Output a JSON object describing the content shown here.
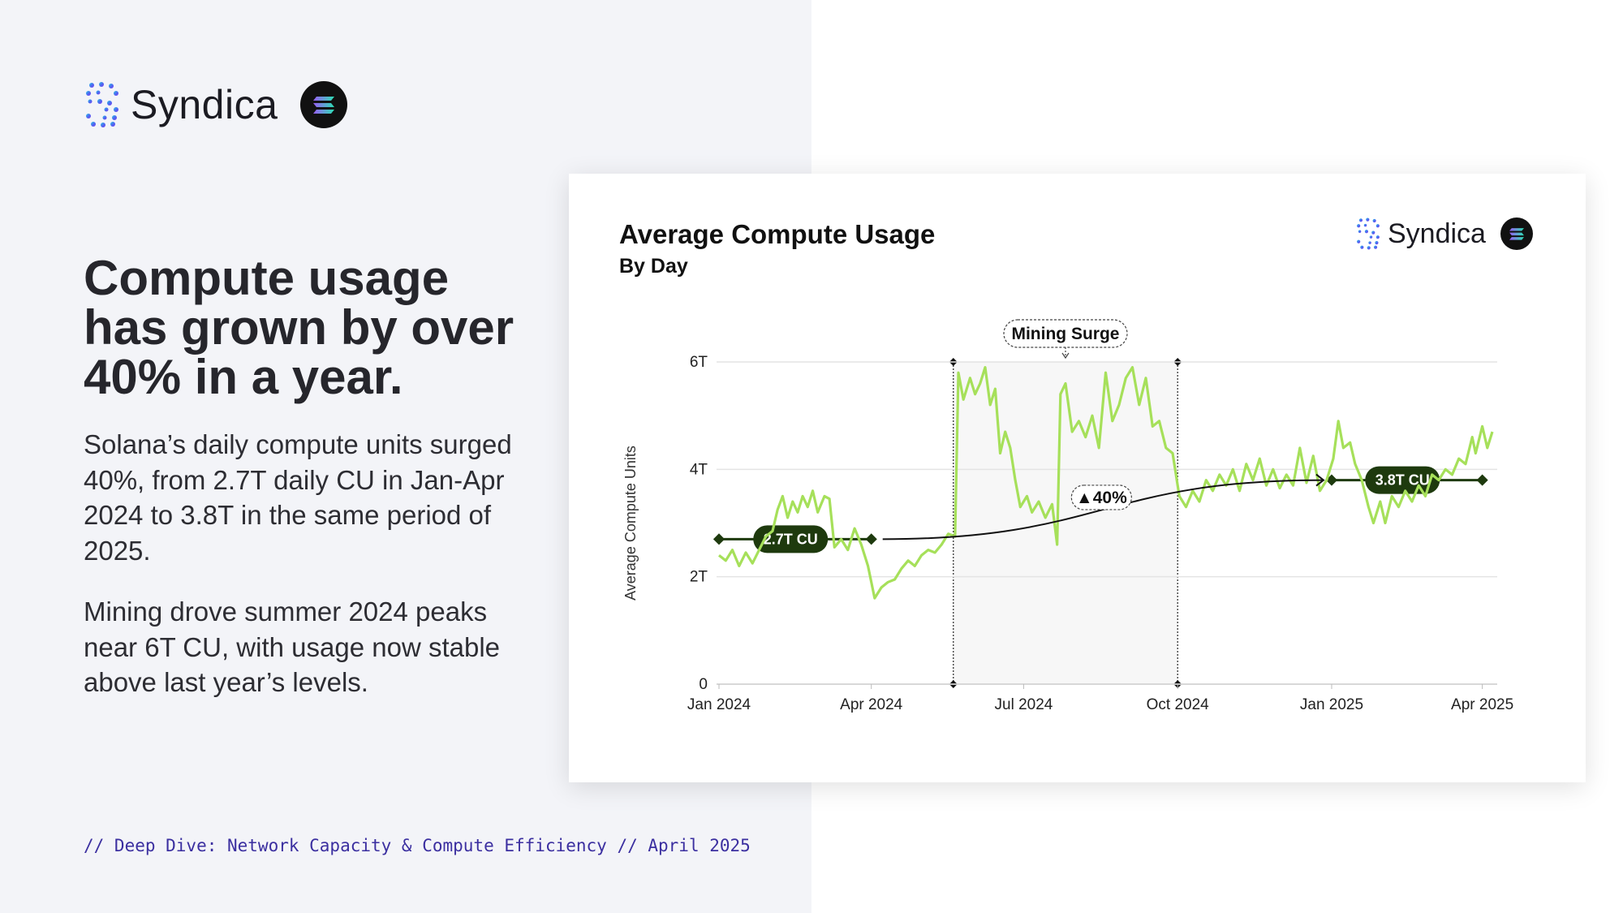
{
  "brand": {
    "name": "Syndica",
    "logo_icon": "syndica-dots-icon",
    "partner_icon": "solana-icon",
    "accent": "#3b2fa0"
  },
  "headline": "Compute usage has grown by over 40% in a year.",
  "paragraphs": [
    "Solana’s daily compute units surged 40%, from 2.7T daily CU in Jan-Apr 2024 to 3.8T in the same period of 2025.",
    "Mining drove summer 2024 peaks near 6T CU, with usage now stable above last year’s levels."
  ],
  "footer": "// Deep Dive: Network Capacity & Compute Efficiency // April 2025",
  "chart_data": {
    "type": "line",
    "title": "Average Compute Usage",
    "subtitle": "By Day",
    "ylabel": "Average Compute Units",
    "xlabel": "",
    "ylim": [
      0,
      6
    ],
    "y_ticks": [
      "0",
      "2T",
      "4T",
      "6T"
    ],
    "x_range": [
      "2024-01-01",
      "2025-04-07"
    ],
    "x_ticks": [
      {
        "date": "2024-01-01",
        "label": "Jan 2024"
      },
      {
        "date": "2024-04-01",
        "label": "Apr 2024"
      },
      {
        "date": "2024-07-01",
        "label": "Jul 2024"
      },
      {
        "date": "2024-10-01",
        "label": "Oct 2024"
      },
      {
        "date": "2025-01-01",
        "label": "Jan 2025"
      },
      {
        "date": "2025-04-01",
        "label": "Apr 2025"
      }
    ],
    "grid": true,
    "line_color": "#a6e05a",
    "series": [
      {
        "unit": "T",
        "points": [
          [
            "2024-01-01",
            2.4
          ],
          [
            "2024-01-05",
            2.3
          ],
          [
            "2024-01-09",
            2.5
          ],
          [
            "2024-01-13",
            2.2
          ],
          [
            "2024-01-17",
            2.45
          ],
          [
            "2024-01-21",
            2.25
          ],
          [
            "2024-01-25",
            2.5
          ],
          [
            "2024-01-29",
            2.75
          ],
          [
            "2024-02-02",
            2.85
          ],
          [
            "2024-02-05",
            3.25
          ],
          [
            "2024-02-08",
            3.5
          ],
          [
            "2024-02-11",
            3.1
          ],
          [
            "2024-02-14",
            3.4
          ],
          [
            "2024-02-17",
            3.2
          ],
          [
            "2024-02-20",
            3.5
          ],
          [
            "2024-02-23",
            3.3
          ],
          [
            "2024-02-26",
            3.6
          ],
          [
            "2024-02-29",
            3.2
          ],
          [
            "2024-03-04",
            3.5
          ],
          [
            "2024-03-07",
            3.45
          ],
          [
            "2024-03-10",
            2.55
          ],
          [
            "2024-03-14",
            2.7
          ],
          [
            "2024-03-18",
            2.5
          ],
          [
            "2024-03-22",
            2.9
          ],
          [
            "2024-03-26",
            2.6
          ],
          [
            "2024-03-30",
            2.2
          ],
          [
            "2024-04-03",
            1.6
          ],
          [
            "2024-04-07",
            1.8
          ],
          [
            "2024-04-11",
            1.9
          ],
          [
            "2024-04-15",
            1.95
          ],
          [
            "2024-04-19",
            2.15
          ],
          [
            "2024-04-23",
            2.3
          ],
          [
            "2024-04-27",
            2.2
          ],
          [
            "2024-05-01",
            2.4
          ],
          [
            "2024-05-05",
            2.5
          ],
          [
            "2024-05-09",
            2.45
          ],
          [
            "2024-05-13",
            2.6
          ],
          [
            "2024-05-17",
            2.8
          ],
          [
            "2024-05-21",
            2.75
          ],
          [
            "2024-05-23",
            5.8
          ],
          [
            "2024-05-26",
            5.3
          ],
          [
            "2024-05-30",
            5.7
          ],
          [
            "2024-06-02",
            5.4
          ],
          [
            "2024-06-05",
            5.6
          ],
          [
            "2024-06-08",
            5.9
          ],
          [
            "2024-06-11",
            5.2
          ],
          [
            "2024-06-14",
            5.5
          ],
          [
            "2024-06-17",
            4.3
          ],
          [
            "2024-06-20",
            4.7
          ],
          [
            "2024-06-23",
            4.4
          ],
          [
            "2024-06-26",
            3.8
          ],
          [
            "2024-06-29",
            3.3
          ],
          [
            "2024-07-03",
            3.5
          ],
          [
            "2024-07-06",
            3.2
          ],
          [
            "2024-07-10",
            3.4
          ],
          [
            "2024-07-14",
            3.1
          ],
          [
            "2024-07-18",
            3.35
          ],
          [
            "2024-07-21",
            2.6
          ],
          [
            "2024-07-23",
            5.4
          ],
          [
            "2024-07-26",
            5.6
          ],
          [
            "2024-07-30",
            4.7
          ],
          [
            "2024-08-03",
            4.9
          ],
          [
            "2024-08-07",
            4.6
          ],
          [
            "2024-08-11",
            5.0
          ],
          [
            "2024-08-15",
            4.4
          ],
          [
            "2024-08-19",
            5.8
          ],
          [
            "2024-08-23",
            4.9
          ],
          [
            "2024-08-27",
            5.2
          ],
          [
            "2024-08-31",
            5.7
          ],
          [
            "2024-09-04",
            5.9
          ],
          [
            "2024-09-08",
            5.2
          ],
          [
            "2024-09-12",
            5.7
          ],
          [
            "2024-09-16",
            4.8
          ],
          [
            "2024-09-20",
            4.9
          ],
          [
            "2024-09-24",
            4.4
          ],
          [
            "2024-09-28",
            4.3
          ],
          [
            "2024-10-02",
            3.5
          ],
          [
            "2024-10-06",
            3.3
          ],
          [
            "2024-10-10",
            3.6
          ],
          [
            "2024-10-14",
            3.4
          ],
          [
            "2024-10-18",
            3.8
          ],
          [
            "2024-10-22",
            3.6
          ],
          [
            "2024-10-26",
            3.9
          ],
          [
            "2024-10-30",
            3.7
          ],
          [
            "2024-11-03",
            4.0
          ],
          [
            "2024-11-07",
            3.6
          ],
          [
            "2024-11-11",
            4.1
          ],
          [
            "2024-11-15",
            3.8
          ],
          [
            "2024-11-19",
            4.2
          ],
          [
            "2024-11-23",
            3.7
          ],
          [
            "2024-11-27",
            4.0
          ],
          [
            "2024-12-01",
            3.65
          ],
          [
            "2024-12-05",
            3.9
          ],
          [
            "2024-12-09",
            3.7
          ],
          [
            "2024-12-13",
            4.4
          ],
          [
            "2024-12-17",
            3.75
          ],
          [
            "2024-12-21",
            4.25
          ],
          [
            "2024-12-25",
            3.6
          ],
          [
            "2024-12-29",
            3.8
          ],
          [
            "2025-01-02",
            4.2
          ],
          [
            "2025-01-05",
            4.9
          ],
          [
            "2025-01-08",
            4.4
          ],
          [
            "2025-01-12",
            4.5
          ],
          [
            "2025-01-15",
            4.1
          ],
          [
            "2025-01-19",
            3.8
          ],
          [
            "2025-01-23",
            3.3
          ],
          [
            "2025-01-26",
            3.0
          ],
          [
            "2025-01-30",
            3.4
          ],
          [
            "2025-02-02",
            3.0
          ],
          [
            "2025-02-06",
            3.5
          ],
          [
            "2025-02-10",
            3.3
          ],
          [
            "2025-02-14",
            3.6
          ],
          [
            "2025-02-18",
            3.4
          ],
          [
            "2025-02-22",
            3.7
          ],
          [
            "2025-02-26",
            3.5
          ],
          [
            "2025-03-02",
            3.9
          ],
          [
            "2025-03-06",
            3.8
          ],
          [
            "2025-03-10",
            4.0
          ],
          [
            "2025-03-14",
            3.9
          ],
          [
            "2025-03-18",
            4.2
          ],
          [
            "2025-03-22",
            4.1
          ],
          [
            "2025-03-26",
            4.6
          ],
          [
            "2025-03-28",
            4.3
          ],
          [
            "2025-04-01",
            4.8
          ],
          [
            "2025-04-04",
            4.4
          ],
          [
            "2025-04-07",
            4.7
          ]
        ]
      }
    ],
    "shaded_region": {
      "label": "Mining Surge",
      "start": "2024-05-20",
      "end": "2024-10-01",
      "color": "#f7f7f7"
    },
    "reference_lines": [
      {
        "label": "2.7T CU",
        "value": 2.7,
        "start": "2024-01-01",
        "end": "2024-04-01"
      },
      {
        "label": "3.8T CU",
        "value": 3.8,
        "start": "2025-01-01",
        "end": "2025-04-01"
      }
    ],
    "change_annotation": {
      "label": "▲40%",
      "from_value": 2.7,
      "to_value": 3.8
    },
    "reference_color": "#1e3a0e"
  }
}
